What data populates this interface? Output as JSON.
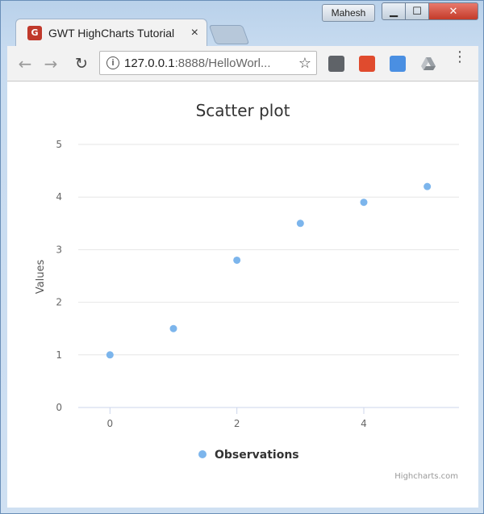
{
  "window": {
    "user": "Mahesh",
    "minimize_icon": "minimize-icon",
    "maximize_icon": "maximize-icon",
    "close_icon": "close-icon"
  },
  "tab": {
    "title": "GWT HighCharts Tutorial",
    "favicon_letter": "G",
    "close": "×"
  },
  "toolbar": {
    "url_host": "127.0.0.1",
    "url_rest": ":8888/HelloWorl...",
    "back_glyph": "←",
    "forward_glyph": "→",
    "reload_glyph": "↻",
    "star_glyph": "☆",
    "menu_glyph": "⋮"
  },
  "chart_data": {
    "type": "scatter",
    "title": "Scatter plot",
    "ylabel": "Values",
    "xlabel": "",
    "xlim": [
      -0.5,
      5.5
    ],
    "ylim": [
      0,
      5
    ],
    "x_ticks": [
      0,
      2,
      4
    ],
    "y_ticks": [
      0,
      1,
      2,
      3,
      4,
      5
    ],
    "grid": true,
    "legend_position": "bottom-center",
    "series": [
      {
        "name": "Observations",
        "color": "#7cb5ec",
        "points": [
          {
            "x": 0,
            "y": 1
          },
          {
            "x": 1,
            "y": 1.5
          },
          {
            "x": 2,
            "y": 2.8
          },
          {
            "x": 3,
            "y": 3.5
          },
          {
            "x": 4,
            "y": 3.9
          },
          {
            "x": 5,
            "y": 4.2
          }
        ]
      }
    ],
    "credits": "Highcharts.com"
  }
}
